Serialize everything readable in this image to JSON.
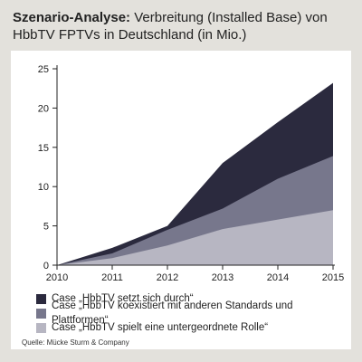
{
  "header": {
    "title_bold": "Szenario-Analyse:",
    "title_rest": " Verbreitung (Installed Base) von HbbTV FPTVs in Deutschland (in Mio.)"
  },
  "source": "Quelle: Mücke Sturm & Company",
  "colors": {
    "page_background": "#e3e1dc",
    "panel_background": "#ffffff",
    "case_1": "#2b2a3e",
    "case_2": "#77778c",
    "case_3": "#b7b6c2"
  },
  "chart_data": {
    "type": "area",
    "stacked": false,
    "x": [
      2010,
      2011,
      2012,
      2013,
      2014,
      2015
    ],
    "xlim": [
      2010,
      2015
    ],
    "ylim": [
      0,
      25
    ],
    "yticks": [
      0,
      5,
      10,
      15,
      20,
      25
    ],
    "grid": false,
    "legend_position": "bottom",
    "series": [
      {
        "name": "Case „HbbTV setzt sich durch“",
        "values": [
          0,
          2.2,
          5.0,
          13.0,
          18.2,
          23.2
        ]
      },
      {
        "name": "Case „HbbTV koexistiert mit anderen Standards und Plattformen“",
        "values": [
          0,
          1.5,
          4.5,
          7.2,
          11.0,
          13.9
        ]
      },
      {
        "name": "Case „HbbTV spielt eine untergeordnete Rolle“",
        "values": [
          0,
          0.9,
          2.5,
          4.6,
          5.8,
          7.0
        ]
      }
    ]
  }
}
